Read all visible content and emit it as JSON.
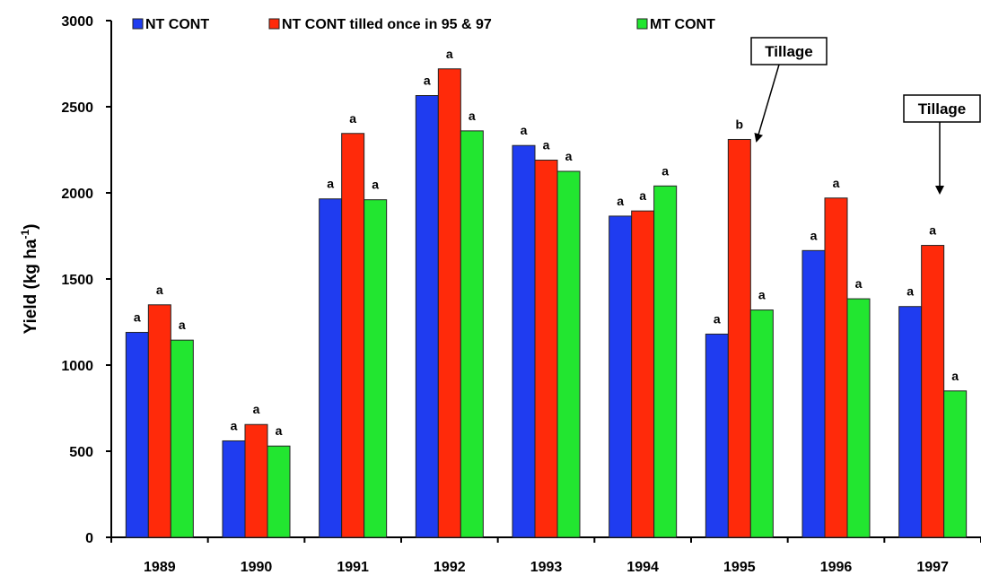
{
  "chart_data": {
    "type": "bar",
    "y_label": "Yield (kg ha",
    "y_label_sup": "-1",
    "y_label_end": ")",
    "categories": [
      "1989",
      "1990",
      "1991",
      "1992",
      "1993",
      "1994",
      "1995",
      "1996",
      "1997"
    ],
    "series": [
      {
        "name": "NT CONT",
        "color": "#1f3cf0",
        "values": [
          1190,
          560,
          1965,
          2565,
          2275,
          1865,
          1180,
          1665,
          1340
        ],
        "letters": [
          "a",
          "a",
          "a",
          "a",
          "a",
          "a",
          "a",
          "a",
          "a"
        ]
      },
      {
        "name": "NT CONT tilled once in 95 & 97",
        "color": "#ff2a0a",
        "values": [
          1350,
          655,
          2345,
          2720,
          2190,
          1895,
          2310,
          1970,
          1695
        ],
        "letters": [
          "a",
          "a",
          "a",
          "a",
          "a",
          "a",
          "b",
          "a",
          "a"
        ]
      },
      {
        "name": "MT CONT",
        "color": "#22e630",
        "values": [
          1145,
          530,
          1960,
          2360,
          2125,
          2040,
          1320,
          1385,
          850
        ],
        "letters": [
          "a",
          "a",
          "a",
          "a",
          "a",
          "a",
          "a",
          "a",
          "a"
        ]
      }
    ],
    "ylim": [
      0,
      3000
    ],
    "yticks": [
      0,
      500,
      1000,
      1500,
      2000,
      2500,
      3000
    ],
    "annotations": [
      {
        "text": "Tillage"
      },
      {
        "text": "Tillage"
      }
    ]
  }
}
